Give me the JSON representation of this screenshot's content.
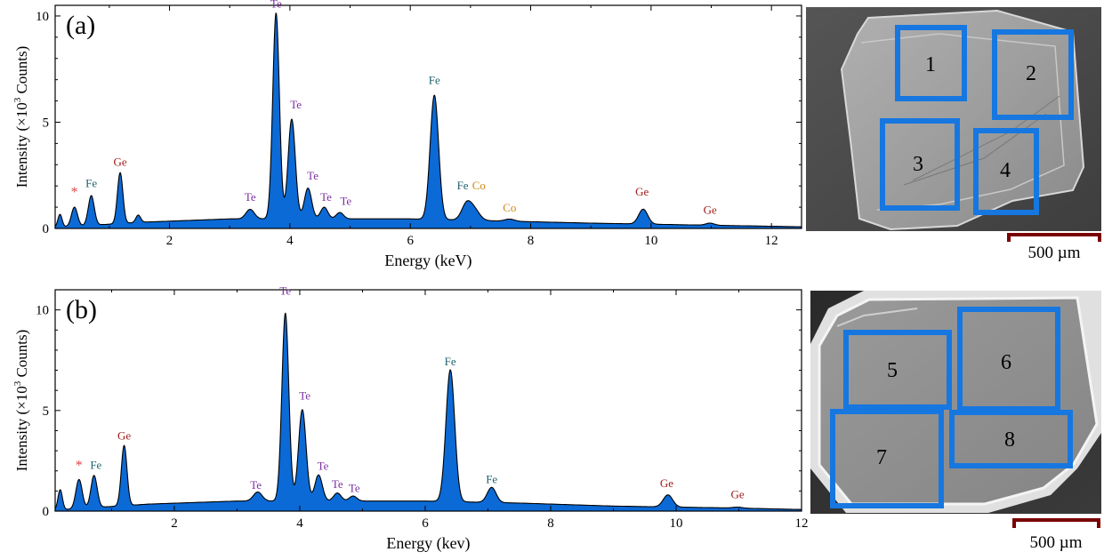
{
  "colors": {
    "fill": "#0b6ad6",
    "Te": "#7b2fa0",
    "Fe": "#1f5f6b",
    "Ge": "#a11c1c",
    "Co": "#d08a12",
    "star": "#e04848",
    "box": "#1677e0",
    "scalebar": "#7a0000"
  },
  "chart_data": [
    {
      "type": "area",
      "panel_label": "(a)",
      "xlabel": "Energy (keV)",
      "ylabel_pre": "Intensity (×10",
      "ylabel_sup": "3",
      "ylabel_post": " Counts)",
      "xlim": [
        0.1,
        12.5
      ],
      "ylim": [
        0,
        10.5
      ],
      "xticks": [
        2,
        4,
        6,
        8,
        10,
        12
      ],
      "yticks": [
        0,
        5,
        10
      ],
      "baseline": [
        [
          0.1,
          0.05
        ],
        [
          1.6,
          0.3
        ],
        [
          3.0,
          0.45
        ],
        [
          6.0,
          0.45
        ],
        [
          7.5,
          0.35
        ],
        [
          9.0,
          0.25
        ],
        [
          11.0,
          0.15
        ],
        [
          12.5,
          0.08
        ]
      ],
      "peaks": [
        {
          "x": 0.18,
          "h": 0.6,
          "w": 0.035
        },
        {
          "x": 0.42,
          "h": 0.9,
          "w": 0.05
        },
        {
          "x": 0.7,
          "h": 1.4,
          "w": 0.05
        },
        {
          "x": 1.18,
          "h": 2.4,
          "w": 0.045
        },
        {
          "x": 1.48,
          "h": 0.35,
          "w": 0.04
        },
        {
          "x": 3.34,
          "h": 0.45,
          "w": 0.07
        },
        {
          "x": 3.77,
          "h": 9.7,
          "w": 0.055
        },
        {
          "x": 4.03,
          "h": 4.7,
          "w": 0.06
        },
        {
          "x": 4.3,
          "h": 1.45,
          "w": 0.06
        },
        {
          "x": 4.57,
          "h": 0.55,
          "w": 0.06
        },
        {
          "x": 4.83,
          "h": 0.3,
          "w": 0.06
        },
        {
          "x": 6.4,
          "h": 5.85,
          "w": 0.07
        },
        {
          "x": 6.93,
          "h": 0.7,
          "w": 0.08
        },
        {
          "x": 7.06,
          "h": 0.5,
          "w": 0.09
        },
        {
          "x": 7.65,
          "h": 0.1,
          "w": 0.08
        },
        {
          "x": 9.87,
          "h": 0.7,
          "w": 0.075
        },
        {
          "x": 10.98,
          "h": 0.1,
          "w": 0.07
        }
      ],
      "annotations": [
        {
          "text": "*",
          "x": 0.42,
          "y": 1.5,
          "el": "star"
        },
        {
          "text": "Fe",
          "x": 0.7,
          "y": 1.95,
          "el": "Fe"
        },
        {
          "text": "Ge",
          "x": 1.18,
          "y": 2.95,
          "el": "Ge"
        },
        {
          "text": "Te",
          "x": 3.34,
          "y": 1.3,
          "el": "Te"
        },
        {
          "text": "Te",
          "x": 3.77,
          "y": 10.4,
          "el": "Te"
        },
        {
          "text": "Te",
          "x": 4.1,
          "y": 5.65,
          "el": "Te"
        },
        {
          "text": "Te",
          "x": 4.38,
          "y": 2.3,
          "el": "Te"
        },
        {
          "text": "Te",
          "x": 4.6,
          "y": 1.3,
          "el": "Te"
        },
        {
          "text": "Te",
          "x": 4.93,
          "y": 1.1,
          "el": "Te"
        },
        {
          "text": "Fe",
          "x": 6.4,
          "y": 6.8,
          "el": "Fe"
        },
        {
          "text": "Fe",
          "x": 6.87,
          "y": 1.85,
          "el": "Fe"
        },
        {
          "text": "Co",
          "x": 7.14,
          "y": 1.85,
          "el": "Co"
        },
        {
          "text": "Co",
          "x": 7.65,
          "y": 0.8,
          "el": "Co"
        },
        {
          "text": "Ge",
          "x": 9.85,
          "y": 1.55,
          "el": "Ge"
        },
        {
          "text": "Ge",
          "x": 10.98,
          "y": 0.7,
          "el": "Ge"
        }
      ]
    },
    {
      "type": "area",
      "panel_label": "(b)",
      "xlabel": "Energy (kev)",
      "ylabel_pre": "Intensity (×10",
      "ylabel_sup": "3",
      "ylabel_post": " Counts)",
      "xlim": [
        0.1,
        12.0
      ],
      "ylim": [
        0,
        11.0
      ],
      "xticks": [
        2,
        4,
        6,
        8,
        10,
        12
      ],
      "yticks": [
        0,
        5,
        10
      ],
      "baseline": [
        [
          0.1,
          0.05
        ],
        [
          1.6,
          0.35
        ],
        [
          3.0,
          0.5
        ],
        [
          6.0,
          0.5
        ],
        [
          7.5,
          0.4
        ],
        [
          9.0,
          0.25
        ],
        [
          11.0,
          0.15
        ],
        [
          12.0,
          0.08
        ]
      ],
      "peaks": [
        {
          "x": 0.18,
          "h": 1.0,
          "w": 0.035
        },
        {
          "x": 0.48,
          "h": 1.45,
          "w": 0.05
        },
        {
          "x": 0.72,
          "h": 1.6,
          "w": 0.05
        },
        {
          "x": 1.2,
          "h": 3.0,
          "w": 0.045
        },
        {
          "x": 3.33,
          "h": 0.45,
          "w": 0.07
        },
        {
          "x": 3.77,
          "h": 9.35,
          "w": 0.055
        },
        {
          "x": 4.04,
          "h": 4.55,
          "w": 0.06
        },
        {
          "x": 4.3,
          "h": 1.3,
          "w": 0.06
        },
        {
          "x": 4.6,
          "h": 0.4,
          "w": 0.06
        },
        {
          "x": 4.85,
          "h": 0.25,
          "w": 0.06
        },
        {
          "x": 6.4,
          "h": 6.55,
          "w": 0.07
        },
        {
          "x": 7.06,
          "h": 0.75,
          "w": 0.07
        },
        {
          "x": 9.87,
          "h": 0.6,
          "w": 0.075
        },
        {
          "x": 10.98,
          "h": 0.05,
          "w": 0.07
        }
      ],
      "annotations": [
        {
          "text": "*",
          "x": 0.48,
          "y": 2.05,
          "el": "star"
        },
        {
          "text": "Fe",
          "x": 0.75,
          "y": 2.1,
          "el": "Fe"
        },
        {
          "text": "Ge",
          "x": 1.2,
          "y": 3.55,
          "el": "Ge"
        },
        {
          "text": "Te",
          "x": 3.3,
          "y": 1.1,
          "el": "Te"
        },
        {
          "text": "Te",
          "x": 3.77,
          "y": 10.75,
          "el": "Te"
        },
        {
          "text": "Te",
          "x": 4.08,
          "y": 5.55,
          "el": "Te"
        },
        {
          "text": "Te",
          "x": 4.37,
          "y": 2.05,
          "el": "Te"
        },
        {
          "text": "Te",
          "x": 4.6,
          "y": 1.15,
          "el": "Te"
        },
        {
          "text": "Te",
          "x": 4.87,
          "y": 0.95,
          "el": "Te"
        },
        {
          "text": "Fe",
          "x": 6.4,
          "y": 7.25,
          "el": "Fe"
        },
        {
          "text": "Fe",
          "x": 7.06,
          "y": 1.4,
          "el": "Fe"
        },
        {
          "text": "Ge",
          "x": 9.85,
          "y": 1.2,
          "el": "Ge"
        },
        {
          "text": "Ge",
          "x": 10.98,
          "y": 0.65,
          "el": "Ge"
        }
      ]
    }
  ],
  "sem_a": {
    "regions": [
      "1",
      "2",
      "3",
      "4"
    ],
    "scalebar_label": "500 µm"
  },
  "sem_b": {
    "regions": [
      "5",
      "6",
      "7",
      "8"
    ],
    "scalebar_label": "500 µm"
  }
}
